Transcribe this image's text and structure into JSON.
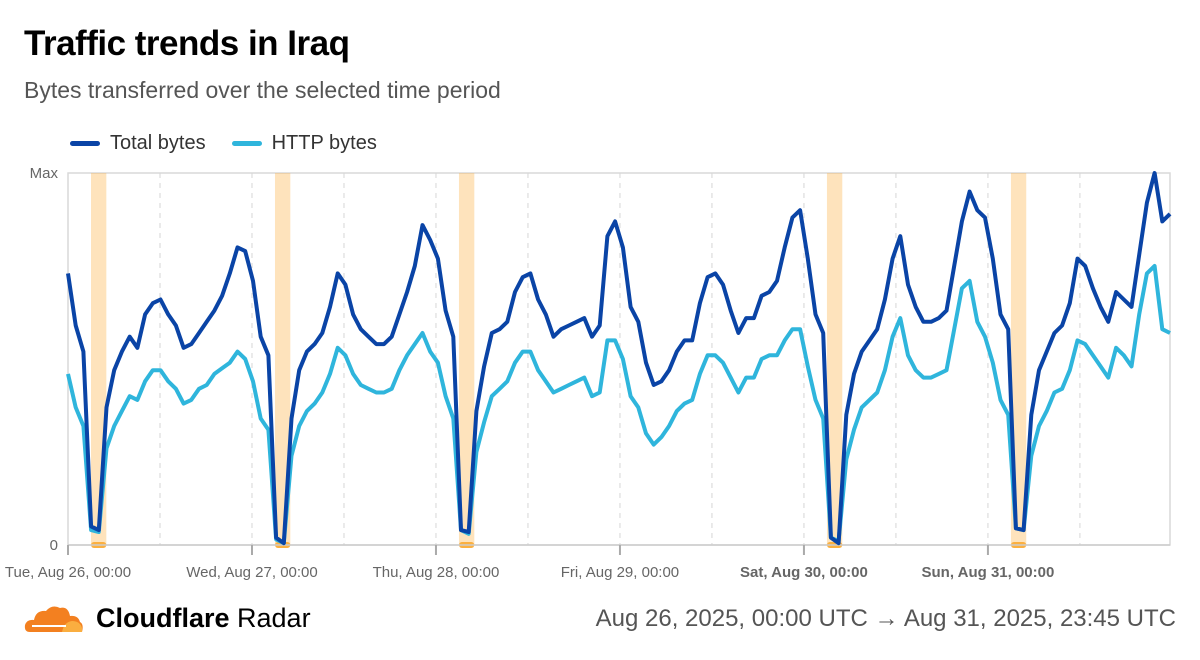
{
  "header": {
    "title": "Traffic trends in Iraq",
    "subtitle": "Bytes transferred over the selected time period"
  },
  "footer": {
    "brand_bold": "Cloudflare",
    "brand_regular": "Radar",
    "date_range": "Aug 26, 2025, 00:00 UTC → Aug 31, 2025, 23:45 UTC"
  },
  "chart_data": {
    "type": "line",
    "title": "Traffic trends in Iraq",
    "subtitle": "Bytes transferred over the selected time period",
    "legend_position": "top-left",
    "x": {
      "start": "2025-08-26T00:00Z",
      "end": "2025-08-31T23:45Z",
      "step_hours": 1
    },
    "x_ticks": [
      {
        "label": "Tue, Aug 26, 00:00",
        "bold": false
      },
      {
        "label": "Wed, Aug 27, 00:00",
        "bold": false
      },
      {
        "label": "Thu, Aug 28, 00:00",
        "bold": false
      },
      {
        "label": "Fri, Aug 29, 00:00",
        "bold": false
      },
      {
        "label": "Sat, Aug 30, 00:00",
        "bold": true
      },
      {
        "label": "Sun, Aug 31, 00:00",
        "bold": true
      }
    ],
    "y_ticks": [
      "0",
      "Max"
    ],
    "ylim": [
      0,
      1
    ],
    "grid": "vertical dashed every 12h",
    "annotation_color": "#fbb040",
    "annotations": [
      {
        "start": "2025-08-26T03:00Z",
        "end": "2025-08-26T05:00Z"
      },
      {
        "start": "2025-08-27T03:00Z",
        "end": "2025-08-27T05:00Z"
      },
      {
        "start": "2025-08-28T03:00Z",
        "end": "2025-08-28T05:00Z"
      },
      {
        "start": "2025-08-30T03:00Z",
        "end": "2025-08-30T05:00Z"
      },
      {
        "start": "2025-08-31T03:00Z",
        "end": "2025-08-31T05:00Z"
      }
    ],
    "series": [
      {
        "name": "Total bytes",
        "color": "#0a44a6",
        "values": [
          0.73,
          0.59,
          0.52,
          0.05,
          0.04,
          0.37,
          0.47,
          0.52,
          0.56,
          0.53,
          0.62,
          0.65,
          0.66,
          0.62,
          0.59,
          0.53,
          0.54,
          0.57,
          0.6,
          0.63,
          0.67,
          0.73,
          0.8,
          0.79,
          0.71,
          0.56,
          0.51,
          0.02,
          0.005,
          0.34,
          0.47,
          0.52,
          0.54,
          0.57,
          0.64,
          0.73,
          0.7,
          0.62,
          0.58,
          0.56,
          0.54,
          0.54,
          0.56,
          0.62,
          0.68,
          0.75,
          0.86,
          0.82,
          0.77,
          0.63,
          0.56,
          0.04,
          0.035,
          0.36,
          0.48,
          0.57,
          0.58,
          0.6,
          0.68,
          0.72,
          0.73,
          0.66,
          0.62,
          0.56,
          0.58,
          0.59,
          0.6,
          0.61,
          0.56,
          0.59,
          0.83,
          0.87,
          0.8,
          0.64,
          0.6,
          0.49,
          0.43,
          0.44,
          0.47,
          0.52,
          0.55,
          0.55,
          0.65,
          0.72,
          0.73,
          0.7,
          0.63,
          0.57,
          0.61,
          0.61,
          0.67,
          0.68,
          0.71,
          0.8,
          0.88,
          0.9,
          0.77,
          0.62,
          0.57,
          0.02,
          0.005,
          0.35,
          0.46,
          0.52,
          0.55,
          0.58,
          0.66,
          0.77,
          0.83,
          0.7,
          0.64,
          0.6,
          0.6,
          0.61,
          0.63,
          0.75,
          0.87,
          0.95,
          0.9,
          0.88,
          0.77,
          0.62,
          0.58,
          0.045,
          0.04,
          0.35,
          0.47,
          0.52,
          0.57,
          0.59,
          0.65,
          0.77,
          0.75,
          0.69,
          0.64,
          0.6,
          0.68,
          0.66,
          0.64,
          0.78,
          0.92,
          1.0,
          0.87,
          0.89
        ]
      },
      {
        "name": "HTTP bytes",
        "color": "#2fb5dc",
        "values": [
          0.46,
          0.37,
          0.32,
          0.04,
          0.035,
          0.26,
          0.32,
          0.36,
          0.4,
          0.39,
          0.44,
          0.47,
          0.47,
          0.44,
          0.42,
          0.38,
          0.39,
          0.42,
          0.43,
          0.46,
          0.475,
          0.49,
          0.52,
          0.5,
          0.44,
          0.34,
          0.31,
          0.015,
          0.005,
          0.24,
          0.32,
          0.36,
          0.38,
          0.41,
          0.46,
          0.53,
          0.51,
          0.46,
          0.43,
          0.42,
          0.41,
          0.41,
          0.42,
          0.47,
          0.51,
          0.54,
          0.57,
          0.52,
          0.49,
          0.4,
          0.34,
          0.04,
          0.03,
          0.25,
          0.33,
          0.4,
          0.42,
          0.44,
          0.49,
          0.52,
          0.52,
          0.47,
          0.44,
          0.41,
          0.42,
          0.43,
          0.44,
          0.45,
          0.4,
          0.41,
          0.55,
          0.55,
          0.5,
          0.4,
          0.37,
          0.3,
          0.27,
          0.29,
          0.32,
          0.36,
          0.38,
          0.39,
          0.46,
          0.51,
          0.51,
          0.49,
          0.45,
          0.41,
          0.45,
          0.45,
          0.5,
          0.51,
          0.51,
          0.55,
          0.58,
          0.58,
          0.48,
          0.39,
          0.34,
          0.02,
          0.01,
          0.23,
          0.31,
          0.37,
          0.39,
          0.41,
          0.47,
          0.56,
          0.61,
          0.51,
          0.47,
          0.45,
          0.45,
          0.46,
          0.47,
          0.58,
          0.69,
          0.71,
          0.6,
          0.56,
          0.49,
          0.39,
          0.35,
          0.045,
          0.04,
          0.24,
          0.32,
          0.36,
          0.41,
          0.42,
          0.47,
          0.55,
          0.54,
          0.51,
          0.48,
          0.45,
          0.53,
          0.51,
          0.48,
          0.62,
          0.73,
          0.75,
          0.58,
          0.57
        ]
      }
    ]
  }
}
